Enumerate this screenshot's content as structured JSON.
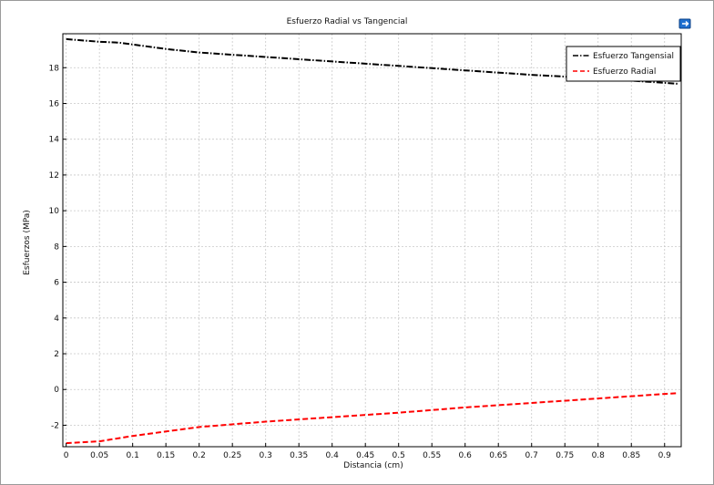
{
  "chart_data": {
    "type": "line",
    "title": "Esfuerzo Radial vs Tangencial",
    "xlabel": "Distancia (cm)",
    "ylabel": "Esfuerzos (MPa)",
    "xlim": [
      -0.005,
      0.925
    ],
    "ylim": [
      -3.2,
      19.9
    ],
    "xticks": [
      "0",
      "0.05",
      "0.1",
      "0.15",
      "0.2",
      "0.25",
      "0.3",
      "0.35",
      "0.4",
      "0.45",
      "0.5",
      "0.55",
      "0.6",
      "0.65",
      "0.7",
      "0.75",
      "0.8",
      "0.85",
      "0.9"
    ],
    "xtick_values": [
      0,
      0.05,
      0.1,
      0.15,
      0.2,
      0.25,
      0.3,
      0.35,
      0.4,
      0.45,
      0.5,
      0.55,
      0.6,
      0.65,
      0.7,
      0.75,
      0.8,
      0.85,
      0.9
    ],
    "yticks": [
      "-2",
      "0",
      "2",
      "4",
      "6",
      "8",
      "10",
      "12",
      "14",
      "16",
      "18"
    ],
    "ytick_values": [
      -2,
      0,
      2,
      4,
      6,
      8,
      10,
      12,
      14,
      16,
      18
    ],
    "grid": true,
    "legend_position": "top-right",
    "series": [
      {
        "name": "Esfuerzo Tangensial",
        "color": "#000000",
        "style": "dash-dot",
        "x": [
          0,
          0.05,
          0.08,
          0.1,
          0.15,
          0.2,
          0.3,
          0.4,
          0.5,
          0.6,
          0.7,
          0.8,
          0.9,
          0.92
        ],
        "y": [
          19.6,
          19.45,
          19.4,
          19.3,
          19.05,
          18.85,
          18.6,
          18.35,
          18.1,
          17.85,
          17.6,
          17.4,
          17.15,
          17.1
        ]
      },
      {
        "name": "Esfuerzo Radial",
        "color": "#ff0000",
        "style": "dashed",
        "x": [
          0,
          0.05,
          0.1,
          0.15,
          0.2,
          0.3,
          0.4,
          0.5,
          0.6,
          0.7,
          0.8,
          0.9,
          0.92
        ],
        "y": [
          -3.0,
          -2.9,
          -2.6,
          -2.35,
          -2.1,
          -1.8,
          -1.55,
          -1.3,
          -1.0,
          -0.75,
          -0.5,
          -0.25,
          -0.2
        ]
      }
    ]
  },
  "icons": {
    "corner": "export-icon"
  },
  "colors": {
    "grid": "#c8c8c8",
    "axis": "#000000",
    "legend_border": "#000000"
  }
}
